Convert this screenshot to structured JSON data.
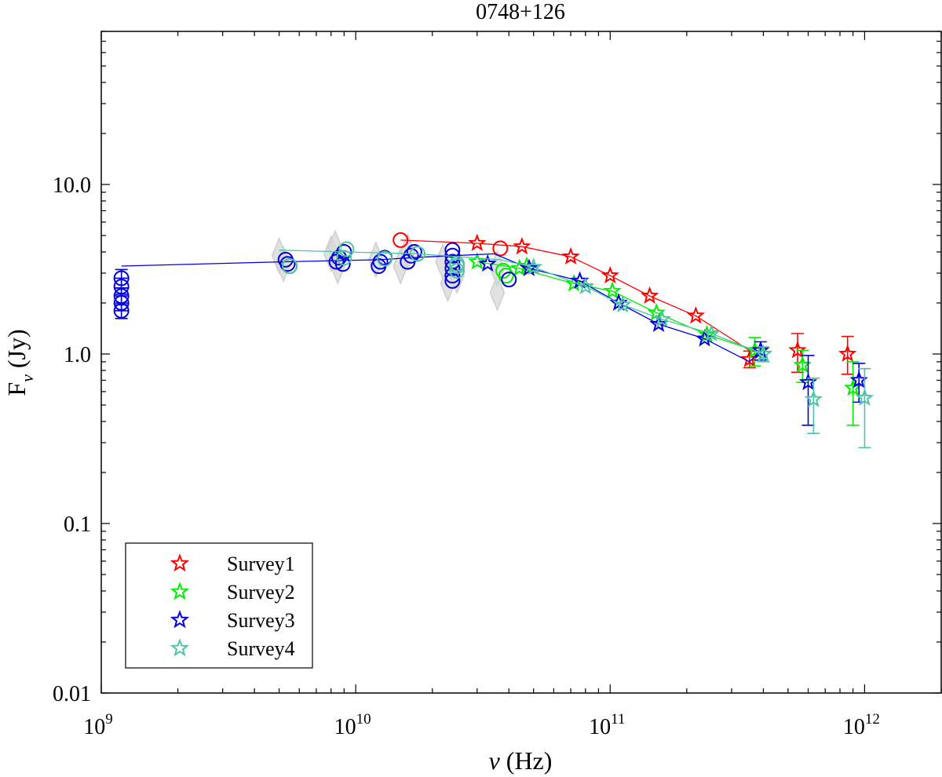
{
  "chart_data": {
    "type": "scatter",
    "title": "0748+126",
    "xlabel": "ν (Hz)",
    "ylabel": "F_ν (Jy)",
    "xscale": "log",
    "yscale": "log",
    "xlim": [
      1000000000.0,
      2000000000000.0
    ],
    "ylim": [
      0.01,
      80
    ],
    "x_ticks": [
      {
        "value": 1000000000.0,
        "base": "10",
        "exp": "9"
      },
      {
        "value": 10000000000.0,
        "base": "10",
        "exp": "10"
      },
      {
        "value": 100000000000.0,
        "base": "10",
        "exp": "11"
      },
      {
        "value": 1000000000000.0,
        "base": "10",
        "exp": "12"
      }
    ],
    "y_ticks": [
      {
        "value": 0.01,
        "label": "0.01"
      },
      {
        "value": 0.1,
        "label": "0.1"
      },
      {
        "value": 1,
        "label": "1.0"
      },
      {
        "value": 10,
        "label": "10.0"
      }
    ],
    "legend_position": "bottom-left",
    "series": [
      {
        "name": "Survey1",
        "color": "#ff0000",
        "circles": [
          [
            15000000000.0,
            4.7
          ],
          [
            37000000000.0,
            4.2
          ]
        ],
        "stars": [
          [
            30000000000.0,
            4.5
          ],
          [
            45000000000.0,
            4.3
          ],
          [
            70000000000.0,
            3.75
          ],
          [
            100000000000.0,
            2.9
          ],
          [
            143000000000.0,
            2.2
          ],
          [
            217000000000.0,
            1.68
          ],
          [
            353000000000.0,
            0.93
          ],
          [
            545000000000.0,
            1.05
          ],
          [
            857000000000.0,
            1.0
          ]
        ],
        "errors": [
          [
            353000000000.0,
            0.93,
            0.83,
            1.04
          ],
          [
            545000000000.0,
            1.05,
            0.78,
            1.32
          ],
          [
            857000000000.0,
            1.0,
            0.76,
            1.27
          ]
        ],
        "line": [
          [
            15000000000.0,
            4.7
          ],
          [
            30000000000.0,
            4.5
          ],
          [
            45000000000.0,
            4.3
          ],
          [
            70000000000.0,
            3.75
          ],
          [
            100000000000.0,
            2.9
          ],
          [
            143000000000.0,
            2.2
          ],
          [
            217000000000.0,
            1.68
          ],
          [
            353000000000.0,
            1.05
          ]
        ]
      },
      {
        "name": "Survey2",
        "color": "#00ee00",
        "circles": [
          [
            38000000000.0,
            3.1
          ],
          [
            39000000000.0,
            2.9
          ]
        ],
        "stars": [
          [
            30000000000.0,
            3.5
          ],
          [
            44000000000.0,
            3.2
          ],
          [
            47000000000.0,
            3.3
          ],
          [
            72000000000.0,
            2.6
          ],
          [
            102000000000.0,
            2.35
          ],
          [
            152000000000.0,
            1.75
          ],
          [
            240000000000.0,
            1.3
          ],
          [
            370000000000.0,
            1.05
          ],
          [
            570000000000.0,
            0.86
          ],
          [
            900000000000.0,
            0.63
          ]
        ],
        "errors": [
          [
            370000000000.0,
            1.05,
            0.85,
            1.25
          ],
          [
            570000000000.0,
            0.86,
            0.68,
            1.05
          ],
          [
            900000000000.0,
            0.63,
            0.38,
            0.9
          ]
        ],
        "line": [
          [
            30000000000.0,
            3.5
          ],
          [
            44000000000.0,
            3.2
          ],
          [
            72000000000.0,
            2.6
          ],
          [
            102000000000.0,
            2.35
          ],
          [
            152000000000.0,
            1.75
          ],
          [
            240000000000.0,
            1.3
          ],
          [
            370000000000.0,
            1.05
          ]
        ]
      },
      {
        "name": "Survey3",
        "color": "#0000dd",
        "circles": [
          [
            1200000000.0,
            2.8
          ],
          [
            1200000000.0,
            2.5
          ],
          [
            1200000000.0,
            2.2
          ],
          [
            1200000000.0,
            2.0
          ],
          [
            1200000000.0,
            1.8
          ],
          [
            5300000000.0,
            3.6
          ],
          [
            5400000000.0,
            3.4
          ],
          [
            5500000000.0,
            3.3
          ],
          [
            8400000000.0,
            3.5
          ],
          [
            8600000000.0,
            3.7
          ],
          [
            8900000000.0,
            3.4
          ],
          [
            9000000000.0,
            4.0
          ],
          [
            12300000000.0,
            3.3
          ],
          [
            12500000000.0,
            3.5
          ],
          [
            13000000000.0,
            3.7
          ],
          [
            16000000000.0,
            3.5
          ],
          [
            16500000000.0,
            3.8
          ],
          [
            17000000000.0,
            4.0
          ],
          [
            24000000000.0,
            4.1
          ],
          [
            24000000000.0,
            3.8
          ],
          [
            24000000000.0,
            3.5
          ],
          [
            24000000000.0,
            3.2
          ],
          [
            24000000000.0,
            2.9
          ],
          [
            24000000000.0,
            2.7
          ],
          [
            40000000000.0,
            2.75
          ]
        ],
        "stars": [
          [
            33000000000.0,
            3.4
          ],
          [
            48000000000.0,
            3.2
          ],
          [
            76000000000.0,
            2.7
          ],
          [
            108000000000.0,
            2.0
          ],
          [
            155000000000.0,
            1.5
          ],
          [
            235000000000.0,
            1.23
          ],
          [
            390000000000.0,
            1.05
          ],
          [
            600000000000.0,
            0.68
          ],
          [
            950000000000.0,
            0.7
          ]
        ],
        "errors": [
          [
            1200000000.0,
            2.8,
            2.45,
            3.15
          ],
          [
            1200000000.0,
            2.5,
            2.2,
            2.8
          ],
          [
            1200000000.0,
            2.2,
            1.95,
            2.45
          ],
          [
            1200000000.0,
            2.0,
            1.8,
            2.25
          ],
          [
            1200000000.0,
            1.8,
            1.62,
            2.0
          ],
          [
            390000000000.0,
            1.05,
            0.92,
            1.18
          ],
          [
            600000000000.0,
            0.68,
            0.38,
            0.98
          ],
          [
            950000000000.0,
            0.7,
            0.52,
            0.88
          ]
        ],
        "line": [
          [
            1200000000.0,
            3.3
          ],
          [
            5300000000.0,
            3.5
          ],
          [
            12500000000.0,
            3.6
          ],
          [
            16500000000.0,
            3.7
          ],
          [
            24000000000.0,
            3.8
          ],
          [
            35000000000.0,
            3.9
          ],
          [
            48000000000.0,
            3.2
          ],
          [
            76000000000.0,
            2.7
          ],
          [
            108000000000.0,
            2.0
          ],
          [
            155000000000.0,
            1.5
          ],
          [
            235000000000.0,
            1.23
          ],
          [
            353000000000.0,
            0.9
          ],
          [
            390000000000.0,
            1.05
          ]
        ]
      },
      {
        "name": "Survey4",
        "color": "#4fc3a8",
        "circles": [
          [
            5500000000.0,
            3.3
          ],
          [
            9200000000.0,
            4.15
          ],
          [
            9000000000.0,
            3.7
          ],
          [
            13000000000.0,
            3.65
          ],
          [
            17500000000.0,
            3.9
          ],
          [
            25000000000.0,
            3.4
          ],
          [
            25000000000.0,
            3.1
          ],
          [
            25000000000.0,
            3.3
          ]
        ],
        "stars": [
          [
            50000000000.0,
            3.25
          ],
          [
            80000000000.0,
            2.5
          ],
          [
            112000000000.0,
            1.95
          ],
          [
            160000000000.0,
            1.6
          ],
          [
            250000000000.0,
            1.32
          ],
          [
            400000000000.0,
            1.0
          ],
          [
            630000000000.0,
            0.54
          ],
          [
            1000000000000.0,
            0.55
          ]
        ],
        "errors": [
          [
            400000000000.0,
            1.0,
            0.9,
            1.1
          ],
          [
            630000000000.0,
            0.54,
            0.34,
            0.72
          ],
          [
            1000000000000.0,
            0.55,
            0.28,
            0.82
          ]
        ],
        "line": [
          [
            5000000000.0,
            4.1
          ],
          [
            9200000000.0,
            4.0
          ],
          [
            17500000000.0,
            3.9
          ],
          [
            37000000000.0,
            3.6
          ],
          [
            50000000000.0,
            3.25
          ],
          [
            80000000000.0,
            2.5
          ],
          [
            112000000000.0,
            1.95
          ],
          [
            160000000000.0,
            1.6
          ],
          [
            250000000000.0,
            1.32
          ],
          [
            400000000000.0,
            1.0
          ]
        ]
      }
    ],
    "background_points": [
      [
        5000000000.0,
        3.8
      ],
      [
        5200000000.0,
        3.4
      ],
      [
        8000000000.0,
        3.9
      ],
      [
        8300000000.0,
        4.2
      ],
      [
        8500000000.0,
        3.3
      ],
      [
        12000000000.0,
        3.6
      ],
      [
        15000000000.0,
        3.3
      ],
      [
        16000000000.0,
        4.0
      ],
      [
        22000000000.0,
        3.5
      ],
      [
        23000000000.0,
        2.6
      ],
      [
        25000000000.0,
        2.9
      ],
      [
        36000000000.0,
        2.3
      ],
      [
        36000000000.0,
        3.2
      ]
    ]
  }
}
